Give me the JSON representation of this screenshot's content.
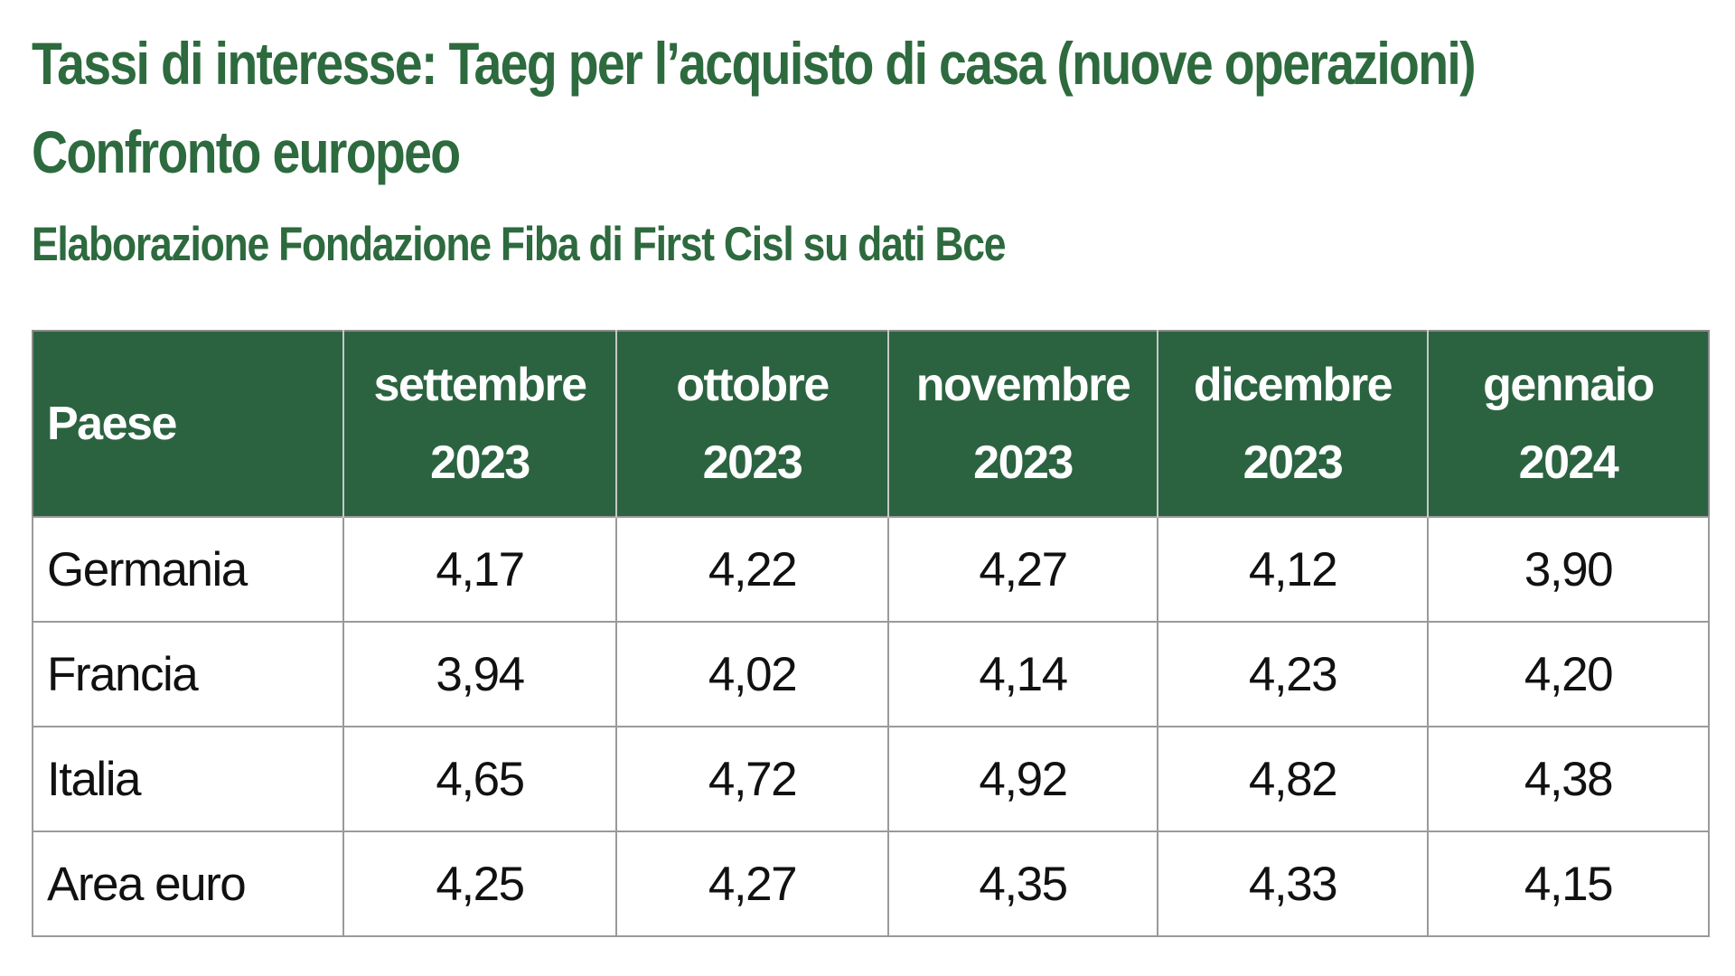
{
  "title": {
    "line1": "Tassi di interesse: Taeg per l’acquisto di casa (nuove operazioni)",
    "line2": "Confronto europeo",
    "subtitle": "Elaborazione Fondazione Fiba di First Cisl su dati Bce"
  },
  "colors": {
    "title_green": "#2d6a3e",
    "header_bg": "#2b6340",
    "header_text": "#ffffff",
    "grid": "#9a9a9a"
  },
  "table": {
    "country_header": "Paese",
    "months": [
      {
        "month": "settembre",
        "year": "2023"
      },
      {
        "month": "ottobre",
        "year": "2023"
      },
      {
        "month": "novembre",
        "year": "2023"
      },
      {
        "month": "dicembre",
        "year": "2023"
      },
      {
        "month": "gennaio",
        "year": "2024"
      }
    ],
    "rows": [
      {
        "country": "Germania",
        "values": [
          "4,17",
          "4,22",
          "4,27",
          "4,12",
          "3,90"
        ]
      },
      {
        "country": "Francia",
        "values": [
          "3,94",
          "4,02",
          "4,14",
          "4,23",
          "4,20"
        ]
      },
      {
        "country": "Italia",
        "values": [
          "4,65",
          "4,72",
          "4,92",
          "4,82",
          "4,38"
        ]
      },
      {
        "country": "Area euro",
        "values": [
          "4,25",
          "4,27",
          "4,35",
          "4,33",
          "4,15"
        ]
      }
    ]
  }
}
